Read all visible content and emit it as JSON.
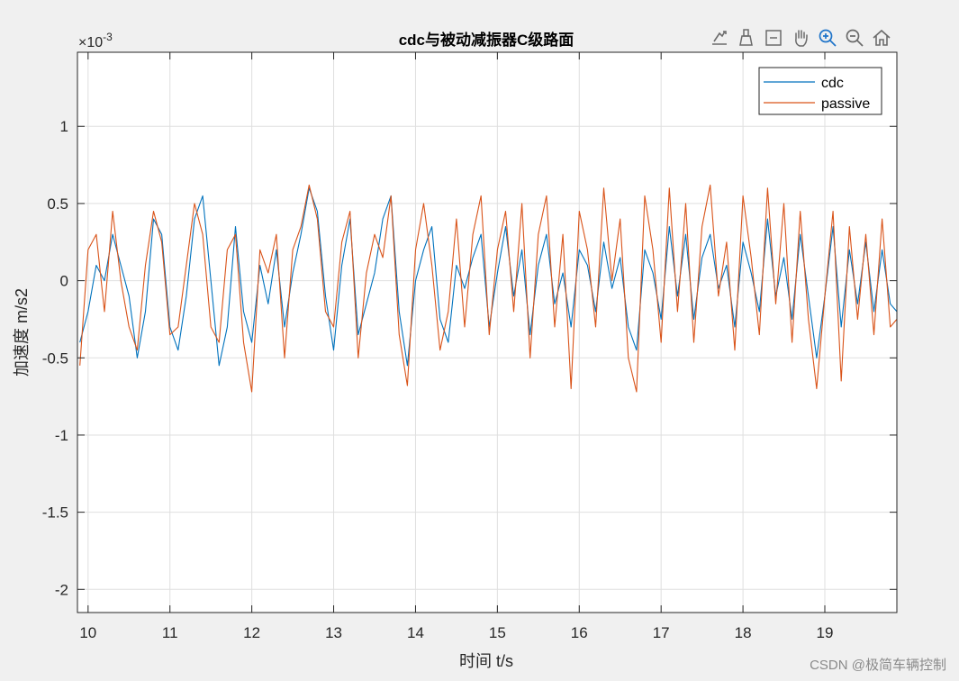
{
  "chart_data": {
    "type": "line",
    "title": "cdc与被动减振器C级路面",
    "xlabel": "时间 t/s",
    "ylabel": "加速度 m/s2",
    "y_exponent_label": "×10",
    "y_exponent_power": "-3",
    "xlim": [
      9.87,
      19.88
    ],
    "ylim": [
      -2.15,
      1.48
    ],
    "x_ticks": [
      10,
      11,
      12,
      13,
      14,
      15,
      16,
      17,
      18,
      19
    ],
    "x_tick_labels": [
      "10",
      "11",
      "12",
      "13",
      "14",
      "15",
      "16",
      "17",
      "18",
      "19"
    ],
    "y_ticks": [
      -2,
      -1.5,
      -1,
      -0.5,
      0,
      0.5,
      1
    ],
    "y_tick_labels": [
      "-2",
      "-1.5",
      "-1",
      "-0.5",
      "0",
      "0.5",
      "1"
    ],
    "grid": true,
    "legend_position": "top-right",
    "series": [
      {
        "name": "cdc",
        "color": "#0072bd",
        "x": [
          9.9,
          10.0,
          10.1,
          10.2,
          10.3,
          10.4,
          10.5,
          10.6,
          10.7,
          10.8,
          10.9,
          11.0,
          11.1,
          11.2,
          11.3,
          11.4,
          11.5,
          11.6,
          11.7,
          11.8,
          11.9,
          12.0,
          12.1,
          12.2,
          12.3,
          12.4,
          12.5,
          12.6,
          12.7,
          12.8,
          12.9,
          13.0,
          13.1,
          13.2,
          13.3,
          13.4,
          13.5,
          13.6,
          13.7,
          13.8,
          13.9,
          14.0,
          14.1,
          14.2,
          14.3,
          14.4,
          14.5,
          14.6,
          14.7,
          14.8,
          14.9,
          15.0,
          15.1,
          15.2,
          15.3,
          15.4,
          15.5,
          15.6,
          15.7,
          15.8,
          15.9,
          16.0,
          16.1,
          16.2,
          16.3,
          16.4,
          16.5,
          16.6,
          16.7,
          16.8,
          16.9,
          17.0,
          17.1,
          17.2,
          17.3,
          17.4,
          17.5,
          17.6,
          17.7,
          17.8,
          17.9,
          18.0,
          18.1,
          18.2,
          18.3,
          18.4,
          18.5,
          18.6,
          18.7,
          18.8,
          18.9,
          19.0,
          19.1,
          19.2,
          19.3,
          19.4,
          19.5,
          19.6,
          19.7,
          19.8,
          19.88
        ],
        "y": [
          -0.4,
          -0.2,
          0.1,
          0.0,
          0.3,
          0.1,
          -0.1,
          -0.5,
          -0.2,
          0.4,
          0.3,
          -0.3,
          -0.45,
          -0.1,
          0.4,
          0.55,
          0.0,
          -0.55,
          -0.3,
          0.35,
          -0.2,
          -0.4,
          0.1,
          -0.15,
          0.2,
          -0.3,
          0.05,
          0.3,
          0.6,
          0.45,
          -0.1,
          -0.45,
          0.1,
          0.4,
          -0.35,
          -0.15,
          0.05,
          0.4,
          0.55,
          -0.2,
          -0.55,
          0.0,
          0.2,
          0.35,
          -0.25,
          -0.4,
          0.1,
          -0.05,
          0.15,
          0.3,
          -0.3,
          0.05,
          0.35,
          -0.1,
          0.2,
          -0.35,
          0.1,
          0.3,
          -0.15,
          0.05,
          -0.3,
          0.2,
          0.1,
          -0.2,
          0.25,
          -0.05,
          0.15,
          -0.3,
          -0.45,
          0.2,
          0.05,
          -0.25,
          0.35,
          -0.1,
          0.3,
          -0.25,
          0.15,
          0.3,
          -0.05,
          0.1,
          -0.3,
          0.25,
          0.05,
          -0.2,
          0.4,
          -0.1,
          0.15,
          -0.25,
          0.3,
          -0.1,
          -0.5,
          -0.1,
          0.35,
          -0.3,
          0.2,
          -0.15,
          0.25,
          -0.2,
          0.2,
          -0.15,
          -0.2
        ]
      },
      {
        "name": "passive",
        "color": "#d95319",
        "x": [
          9.9,
          10.0,
          10.1,
          10.2,
          10.3,
          10.4,
          10.5,
          10.6,
          10.7,
          10.8,
          10.9,
          11.0,
          11.1,
          11.2,
          11.3,
          11.4,
          11.5,
          11.6,
          11.7,
          11.8,
          11.9,
          12.0,
          12.1,
          12.2,
          12.3,
          12.4,
          12.5,
          12.6,
          12.7,
          12.8,
          12.9,
          13.0,
          13.1,
          13.2,
          13.3,
          13.4,
          13.5,
          13.6,
          13.7,
          13.8,
          13.9,
          14.0,
          14.1,
          14.2,
          14.3,
          14.4,
          14.5,
          14.6,
          14.7,
          14.8,
          14.9,
          15.0,
          15.1,
          15.2,
          15.3,
          15.4,
          15.5,
          15.6,
          15.7,
          15.8,
          15.9,
          16.0,
          16.1,
          16.2,
          16.3,
          16.4,
          16.5,
          16.6,
          16.7,
          16.8,
          16.9,
          17.0,
          17.1,
          17.2,
          17.3,
          17.4,
          17.5,
          17.6,
          17.7,
          17.8,
          17.9,
          18.0,
          18.1,
          18.2,
          18.3,
          18.4,
          18.5,
          18.6,
          18.7,
          18.8,
          18.9,
          19.0,
          19.1,
          19.2,
          19.3,
          19.4,
          19.5,
          19.6,
          19.7,
          19.8,
          19.88
        ],
        "y": [
          -0.55,
          0.2,
          0.3,
          -0.2,
          0.45,
          0.0,
          -0.3,
          -0.45,
          0.1,
          0.45,
          0.25,
          -0.35,
          -0.3,
          0.1,
          0.5,
          0.3,
          -0.3,
          -0.4,
          0.2,
          0.3,
          -0.4,
          -0.72,
          0.2,
          0.05,
          0.3,
          -0.5,
          0.2,
          0.35,
          0.62,
          0.4,
          -0.2,
          -0.3,
          0.25,
          0.45,
          -0.5,
          0.05,
          0.3,
          0.15,
          0.55,
          -0.35,
          -0.68,
          0.2,
          0.5,
          0.1,
          -0.45,
          -0.2,
          0.4,
          -0.3,
          0.3,
          0.55,
          -0.35,
          0.2,
          0.45,
          -0.2,
          0.5,
          -0.5,
          0.3,
          0.55,
          -0.3,
          0.3,
          -0.7,
          0.45,
          0.2,
          -0.3,
          0.6,
          0.0,
          0.4,
          -0.5,
          -0.72,
          0.55,
          0.2,
          -0.4,
          0.6,
          -0.2,
          0.5,
          -0.4,
          0.35,
          0.62,
          -0.1,
          0.25,
          -0.45,
          0.55,
          0.15,
          -0.35,
          0.6,
          -0.15,
          0.5,
          -0.4,
          0.45,
          -0.25,
          -0.7,
          -0.1,
          0.45,
          -0.65,
          0.35,
          -0.25,
          0.3,
          -0.35,
          0.4,
          -0.3,
          -0.25
        ]
      }
    ]
  },
  "toolbar": {
    "icons": [
      "export-icon",
      "brush-icon",
      "data-tips-icon",
      "pan-icon",
      "zoom-in-icon",
      "zoom-out-icon",
      "home-icon"
    ]
  },
  "watermark": "CSDN @极简车辆控制"
}
